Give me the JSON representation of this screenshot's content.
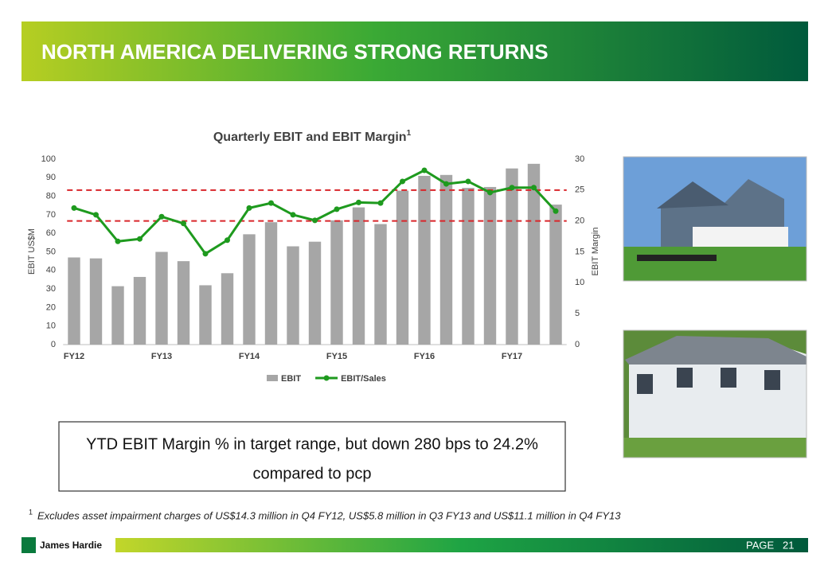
{
  "header": {
    "title": "NORTH AMERICA DELIVERING STRONG RETURNS"
  },
  "chart_data": {
    "type": "bar_line",
    "title": "Quarterly  EBIT and EBIT Margin",
    "title_superscript": "1",
    "ylabel": "EBIT US$M",
    "y2label": "EBIT Margin",
    "categories": [
      "FY12",
      null,
      null,
      null,
      "FY13",
      null,
      null,
      null,
      "FY14",
      null,
      null,
      null,
      "FY15",
      null,
      null,
      null,
      "FY16",
      null,
      null,
      null,
      "FY17",
      null,
      null
    ],
    "series": [
      {
        "name": "EBIT",
        "type": "bar",
        "color": "#a6a6a6",
        "values": [
          47,
          46.5,
          31.5,
          36.5,
          50,
          45,
          32,
          38.5,
          59.5,
          66,
          53,
          55.5,
          67,
          74,
          65,
          83,
          91,
          91.5,
          84.5,
          85,
          95,
          97.5,
          75.5
        ]
      },
      {
        "name": "EBIT/Sales",
        "type": "line",
        "axis": "y2",
        "color": "#1e9a1e",
        "values": [
          22.1,
          21.0,
          16.7,
          17.1,
          20.7,
          19.6,
          14.7,
          16.9,
          22.1,
          22.9,
          21.0,
          20.1,
          21.9,
          23.0,
          22.9,
          26.4,
          28.2,
          26.0,
          26.4,
          24.6,
          25.4,
          25.4,
          21.6
        ]
      }
    ],
    "ylim": [
      0,
      100
    ],
    "yticks": [
      0,
      10,
      20,
      30,
      40,
      50,
      60,
      70,
      80,
      90,
      100
    ],
    "y2lim": [
      0,
      30
    ],
    "y2ticks": [
      0,
      5,
      10,
      15,
      20,
      25,
      30
    ],
    "reference_lines": [
      20,
      25
    ],
    "reference_color": "#d9262b",
    "grid": false,
    "legend": "bottom"
  },
  "callout": {
    "lines": [
      "YTD EBIT Margin % in target range, but down 280 bps to 24.2%",
      "compared to pcp"
    ]
  },
  "footnote": {
    "marker": "1",
    "text": "Excludes asset impairment charges of US$14.3 million in Q4 FY12, US$5.8 million in Q3 FY13 and US$11.1 million in Q4 FY13"
  },
  "footer": {
    "brand": "James Hardie",
    "page_label": "PAGE",
    "page_number": "21"
  }
}
